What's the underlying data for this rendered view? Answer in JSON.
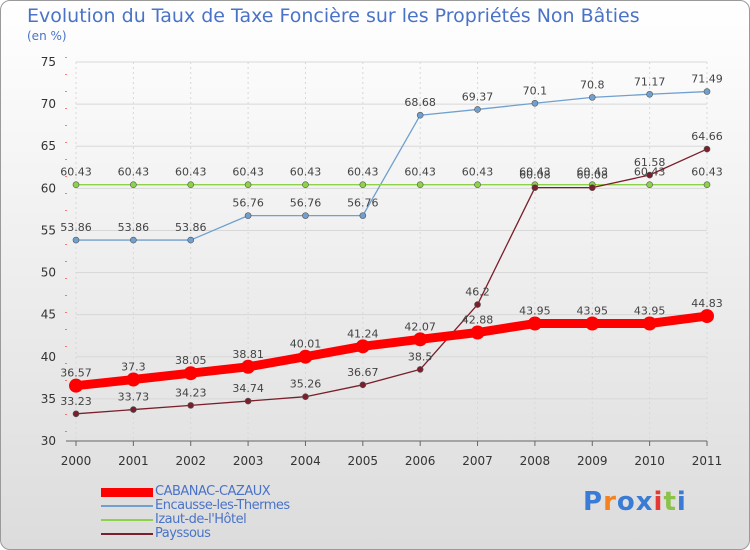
{
  "page": {
    "title": "Evolution du Taux de Taxe Foncière sur les Propriétés Non Bâties",
    "subtitle": "(en %)"
  },
  "logo": {
    "letters": [
      "P",
      "r",
      "o",
      "x",
      "i",
      "t",
      "i"
    ],
    "colors": [
      "#3a7bd5",
      "#f58220",
      "#3a7bd5",
      "#3a7bd5",
      "#e53935",
      "#8bc34a",
      "#3a7bd5"
    ]
  },
  "chart_data": {
    "type": "line",
    "title": "Evolution du Taux de Taxe Foncière sur les Propriétés Non Bâties",
    "ylabel": "(en %)",
    "x": [
      "2000",
      "2001",
      "2002",
      "2003",
      "2004",
      "2005",
      "2006",
      "2007",
      "2008",
      "2009",
      "2010",
      "2011"
    ],
    "ylim": [
      30,
      75
    ],
    "yticks": [
      30,
      35,
      40,
      45,
      50,
      55,
      60,
      65,
      70,
      75
    ],
    "legend_position": "bottom-left",
    "series": [
      {
        "name": "CABANAC-CAZAUX",
        "color": "#ff0000",
        "width": 9,
        "marker": 7,
        "values": [
          36.57,
          37.3,
          38.05,
          38.81,
          40.01,
          41.24,
          42.07,
          42.88,
          43.95,
          43.95,
          43.95,
          44.83
        ],
        "labels": [
          "36.57",
          "37.3",
          "38.05",
          "38.81",
          "40.01",
          "41.24",
          "42.07",
          "42.88",
          "43.95",
          "43.95",
          "43.95",
          "44.83"
        ]
      },
      {
        "name": "Encausse-les-Thermes",
        "color": "#6fa0d0",
        "width": 1.3,
        "marker": 3,
        "values": [
          53.86,
          53.86,
          53.86,
          56.76,
          56.76,
          56.76,
          68.68,
          69.37,
          70.1,
          70.8,
          71.17,
          71.49
        ],
        "labels": [
          "53.86",
          "53.86",
          "53.86",
          "56.76",
          "56.76",
          "56.76",
          "68.68",
          "69.37",
          "70.1",
          "70.8",
          "71.17",
          "71.49"
        ]
      },
      {
        "name": "Izaut-de-l'Hôtel",
        "color": "#8ed14a",
        "width": 1.3,
        "marker": 3,
        "values": [
          60.43,
          60.43,
          60.43,
          60.43,
          60.43,
          60.43,
          60.43,
          60.43,
          60.43,
          60.43,
          60.43,
          60.43
        ],
        "labels": [
          "60.43",
          "60.43",
          "60.43",
          "60.43",
          "60.43",
          "60.43",
          "60.43",
          "60.43",
          "60.43",
          "60.43",
          "60.43",
          "60.43"
        ]
      },
      {
        "name": "Payssous",
        "color": "#7a1f2b",
        "width": 1.3,
        "marker": 3,
        "values": [
          33.23,
          33.73,
          34.23,
          34.74,
          35.26,
          36.67,
          38.5,
          46.2,
          60.08,
          60.08,
          61.58,
          64.66
        ],
        "labels": [
          "33.23",
          "33.73",
          "34.23",
          "34.74",
          "35.26",
          "36.67",
          "38.5",
          "46.2",
          "60.08",
          "60.08",
          "61.58",
          "64.66"
        ]
      }
    ]
  }
}
